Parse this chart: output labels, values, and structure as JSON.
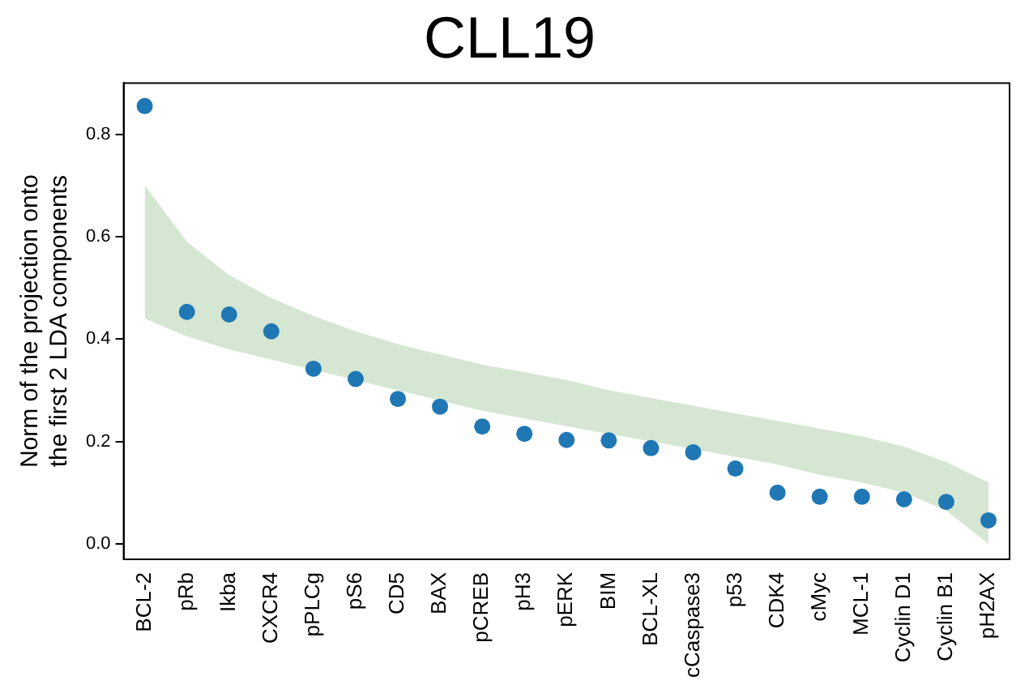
{
  "chart_data": {
    "type": "scatter",
    "title": "CLL19",
    "ylabel": "Norm of the projection onto the first 2 LDA components",
    "categories": [
      "BCL-2",
      "pRb",
      "Ikba",
      "CXCR4",
      "pPLCg",
      "pS6",
      "CD5",
      "BAX",
      "pCREB",
      "pH3",
      "pERK",
      "BIM",
      "BCL-XL",
      "cCaspase3",
      "p53",
      "CDK4",
      "cMyc",
      "MCL-1",
      "Cyclin D1",
      "Cyclin B1",
      "pH2AX"
    ],
    "series": [
      {
        "color": "#1f77b4",
        "values": [
          0.855,
          0.453,
          0.448,
          0.415,
          0.342,
          0.322,
          0.283,
          0.268,
          0.229,
          0.215,
          0.203,
          0.202,
          0.187,
          0.179,
          0.147,
          0.1,
          0.092,
          0.092,
          0.087,
          0.082,
          0.046
        ],
        "lower": [
          0.44,
          0.405,
          0.38,
          0.36,
          0.34,
          0.32,
          0.3,
          0.28,
          0.26,
          0.245,
          0.23,
          0.215,
          0.2,
          0.185,
          0.17,
          0.155,
          0.135,
          0.12,
          0.1,
          0.065,
          0.0
        ],
        "upper": [
          0.7,
          0.59,
          0.525,
          0.48,
          0.445,
          0.415,
          0.39,
          0.37,
          0.35,
          0.335,
          0.32,
          0.3,
          0.285,
          0.27,
          0.255,
          0.24,
          0.225,
          0.21,
          0.19,
          0.16,
          0.12
        ]
      }
    ],
    "ylim": [
      -0.03,
      0.9
    ],
    "yticks": [
      {
        "value": 0,
        "label": "0.0"
      },
      {
        "value": 0.2,
        "label": "0.2"
      },
      {
        "value": 0.4,
        "label": "0.4"
      },
      {
        "value": 0.6,
        "label": "0.6"
      },
      {
        "value": 0.8,
        "label": "0.8"
      }
    ],
    "grid": false,
    "legend": false,
    "marker": "circle"
  }
}
